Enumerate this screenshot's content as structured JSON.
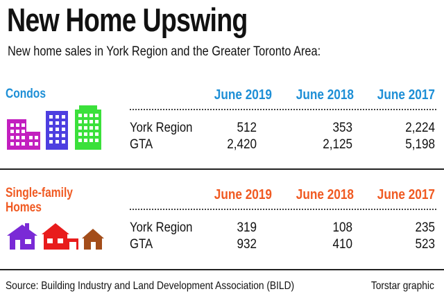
{
  "title": "New Home Upswing",
  "subtitle": "New home sales in York Region and the Greater Toronto Area:",
  "colors": {
    "condo_accent": "#1e8fd6",
    "single_family_accent": "#f05a22",
    "condo_icon_magenta": "#c21fbf",
    "condo_icon_blue": "#4d3fe0",
    "condo_icon_green": "#3be03b",
    "home_icon_purple": "#7a2ad6",
    "home_icon_red": "#e81c1c",
    "home_icon_brown": "#a34d1a"
  },
  "chart_data": {
    "type": "table",
    "columns": [
      "June 2019",
      "June 2018",
      "June 2017"
    ],
    "sections": [
      {
        "name": "Condos",
        "icons": [
          "condo-building-icon",
          "condo-building-icon",
          "condo-building-icon"
        ],
        "rows": [
          {
            "label": "York Region",
            "values": [
              "512",
              "353",
              "2,224"
            ]
          },
          {
            "label": "GTA",
            "values": [
              "2,420",
              "2,125",
              "5,198"
            ]
          }
        ]
      },
      {
        "name_line1": "Single-family",
        "name_line2": "Homes",
        "icons": [
          "house-icon",
          "house-icon",
          "house-icon"
        ],
        "rows": [
          {
            "label": "York Region",
            "values": [
              "319",
              "108",
              "235"
            ]
          },
          {
            "label": "GTA",
            "values": [
              "932",
              "410",
              "523"
            ]
          }
        ]
      }
    ]
  },
  "footer": {
    "source": "Source: Building Industry and Land Development Association (BILD)",
    "credit": "Torstar graphic"
  }
}
